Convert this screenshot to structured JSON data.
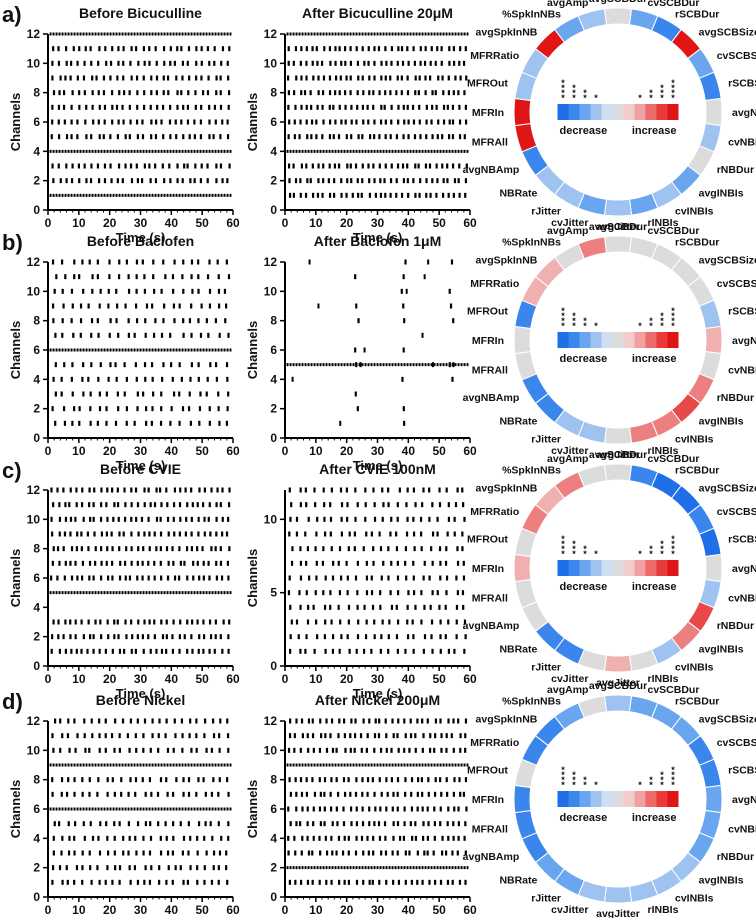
{
  "figure": {
    "x_axis_label": "Time (s)",
    "y_axis_label": "Channels",
    "wheel_parameters": [
      "avgSCBDur",
      "cvSCBDur",
      "rSCBDur",
      "avgSCBSize",
      "cvSCBSize",
      "rSCBSize",
      "avgNBDur",
      "cvNBDur",
      "rNBDur",
      "avgINBIs",
      "cvINBIs",
      "rINBIs",
      "avgJitter",
      "cvJitter",
      "rJitter",
      "NBRate",
      "avgNBAmp",
      "MFRAll",
      "MFRIn",
      "MFROut",
      "MFRRatio",
      "avgSpkInNB",
      "%SpkInNBs",
      "avgAmp"
    ],
    "scale": {
      "decrease_label": "decrease",
      "increase_label": "increase",
      "colors": [
        "#1f6fe8",
        "#3a86ec",
        "#6aa6ef",
        "#9ec3f1",
        "#cfdff2",
        "#dcdcdc",
        "#f2cccc",
        "#f0a0a0",
        "#ec6a6a",
        "#e83a3a",
        "#e01515"
      ],
      "star_groups": [
        "****",
        "***",
        "**",
        "*",
        "",
        "",
        "",
        "*",
        "**",
        "***",
        "****"
      ]
    },
    "color_codes": {
      "D4": "#1f6fe8",
      "D3": "#3a86ec",
      "D2": "#6aa6ef",
      "D1": "#9ec3f1",
      "N": "#dcdcdc",
      "I1": "#f0b0b0",
      "I2": "#ec8080",
      "I3": "#e84848",
      "I4": "#e01515"
    }
  },
  "chart_data": [
    {
      "type": "raster",
      "panel": "a)",
      "before_title": "Before Bicuculline",
      "after_title": "After Bicuculline 20μM",
      "xlim": [
        0,
        60
      ],
      "ylim": [
        0,
        12
      ],
      "x_ticks": [
        0,
        10,
        20,
        30,
        40,
        50,
        60
      ],
      "y_ticks": [
        0,
        2,
        4,
        6,
        8,
        10,
        12
      ],
      "before_channels": [
        12,
        11,
        10,
        9,
        8,
        7,
        6,
        5,
        4,
        3,
        2,
        1
      ],
      "after_channels": [
        12,
        11,
        10,
        9,
        8,
        7,
        6,
        5,
        4,
        3,
        2,
        1
      ],
      "before_continuous": [
        12,
        4,
        1
      ],
      "after_continuous": [
        12,
        4
      ],
      "before_spikes": 28,
      "after_spikes": 32,
      "wheel_colors": [
        "N",
        "D2",
        "D3",
        "I4",
        "D2",
        "D3",
        "N",
        "D1",
        "N",
        "D2",
        "D1",
        "D2",
        "D1",
        "D2",
        "D1",
        "D1",
        "D3",
        "I4",
        "I4",
        "D1",
        "D1",
        "I4",
        "D2",
        "D1"
      ]
    },
    {
      "type": "raster",
      "panel": "b)",
      "before_title": "Before Baclofen",
      "after_title": "After Baclofen 1μM",
      "xlim": [
        0,
        60
      ],
      "ylim": [
        0,
        12
      ],
      "x_ticks": [
        0,
        10,
        20,
        30,
        40,
        50,
        60
      ],
      "y_ticks": [
        0,
        2,
        4,
        6,
        8,
        10,
        12
      ],
      "before_channels": [
        12,
        11,
        10,
        9,
        8,
        7,
        6,
        5,
        4,
        3,
        2,
        1
      ],
      "after_channels": [
        12,
        11,
        10,
        9,
        8,
        7,
        6,
        5,
        4,
        3,
        2,
        1
      ],
      "before_continuous": [
        6
      ],
      "after_continuous": [
        5
      ],
      "before_spikes": 20,
      "after_spikes": 0,
      "after_bursts": [
        23,
        38,
        53.5
      ],
      "wheel_colors": [
        "N",
        "N",
        "N",
        "N",
        "N",
        "D1",
        "I1",
        "N",
        "I2",
        "I3",
        "I2",
        "I2",
        "N",
        "D1",
        "D1",
        "D3",
        "D3",
        "N",
        "N",
        "D3",
        "I1",
        "I1",
        "N",
        "I2"
      ]
    },
    {
      "type": "raster",
      "panel": "c)",
      "before_title": "Before CVIE",
      "after_title": "After CVIE 100nM",
      "xlim": [
        0,
        60
      ],
      "ylim": [
        0,
        12
      ],
      "x_ticks": [
        0,
        10,
        20,
        30,
        40,
        50,
        60
      ],
      "y_ticks": [
        0,
        2,
        4,
        6,
        8,
        10,
        12
      ],
      "after_y_ticks": [
        0,
        5,
        10
      ],
      "before_channels": [
        12,
        11,
        10,
        9,
        8,
        7,
        6,
        5,
        3,
        2,
        1
      ],
      "after_channels": [
        12,
        11,
        10,
        9,
        8,
        7,
        6,
        5,
        4,
        3,
        2,
        1
      ],
      "before_continuous": [
        5
      ],
      "after_continuous": [],
      "before_spikes": 30,
      "after_spikes": 22,
      "wheel_colors": [
        "N",
        "D3",
        "D4",
        "D4",
        "D3",
        "D4",
        "N",
        "D1",
        "I3",
        "I2",
        "D1",
        "N",
        "I1",
        "N",
        "D3",
        "D3",
        "N",
        "N",
        "I1",
        "N",
        "I2",
        "I1",
        "I2",
        "N"
      ]
    },
    {
      "type": "raster",
      "panel": "d)",
      "before_title": "Before Nickel",
      "after_title": "After Nickel 200μM",
      "xlim": [
        0,
        60
      ],
      "ylim": [
        0,
        12
      ],
      "x_ticks": [
        0,
        10,
        20,
        30,
        40,
        50,
        60
      ],
      "y_ticks": [
        0,
        2,
        4,
        6,
        8,
        10,
        12
      ],
      "before_channels": [
        12,
        11,
        10,
        9,
        8,
        7,
        6,
        5,
        4,
        3,
        2,
        1
      ],
      "after_channels": [
        12,
        11,
        10,
        9,
        8,
        7,
        6,
        5,
        4,
        3,
        2,
        1
      ],
      "before_continuous": [
        9,
        6
      ],
      "after_continuous": [
        9,
        2
      ],
      "before_spikes": 24,
      "after_spikes": 30,
      "wheel_colors": [
        "D1",
        "D2",
        "D2",
        "D2",
        "D3",
        "D3",
        "D2",
        "D2",
        "D2",
        "D1",
        "D1",
        "D1",
        "D1",
        "D1",
        "D2",
        "D2",
        "D3",
        "D3",
        "D3",
        "N",
        "D3",
        "D3",
        "D2",
        "N"
      ]
    }
  ]
}
